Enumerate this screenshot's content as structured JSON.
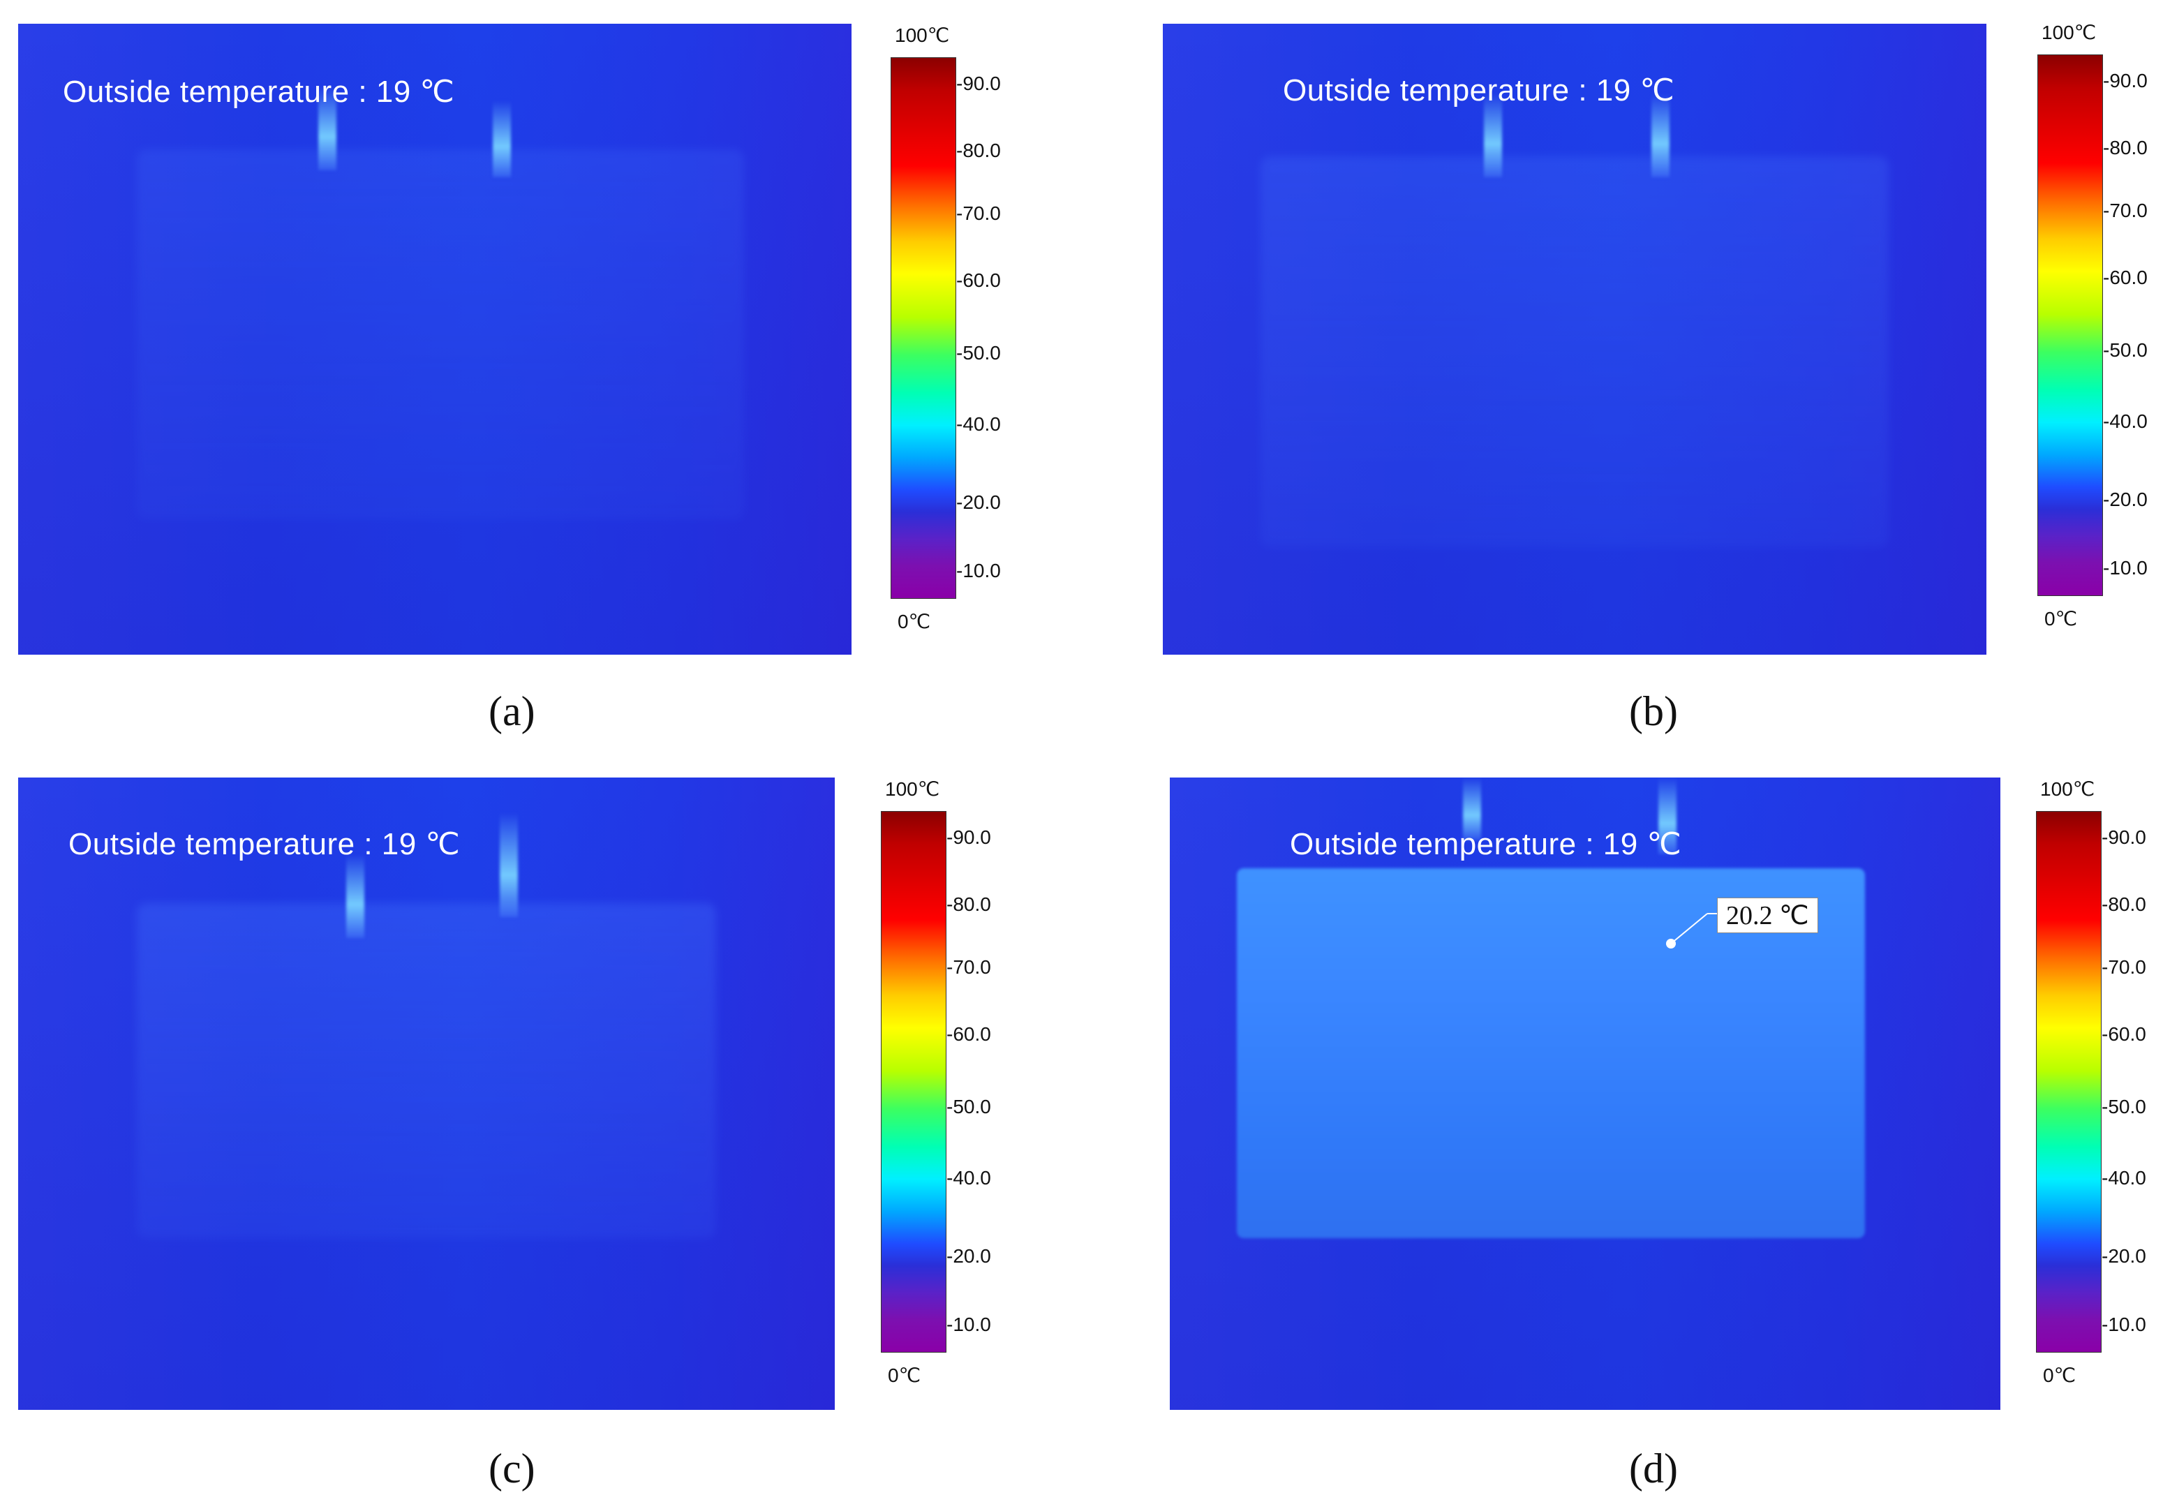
{
  "panels": [
    {
      "id": "a",
      "caption": "Outside temperature : 19 ℃",
      "label": "(a)",
      "colorbar": {
        "max_label": "100℃",
        "min_label": "0℃",
        "ticks": [
          "-90.0",
          "-80.0",
          "-70.0",
          "-60.0",
          "-50.0",
          "-40.0",
          "-20.0",
          "-10.0"
        ]
      }
    },
    {
      "id": "b",
      "caption": "Outside temperature : 19 ℃",
      "label": "(b)",
      "colorbar": {
        "max_label": "100℃",
        "min_label": "0℃",
        "ticks": [
          "-90.0",
          "-80.0",
          "-70.0",
          "-60.0",
          "-50.0",
          "-40.0",
          "-20.0",
          "-10.0"
        ]
      }
    },
    {
      "id": "c",
      "caption": "Outside temperature : 19 ℃",
      "label": "(c)",
      "colorbar": {
        "max_label": "100℃",
        "min_label": "0℃",
        "ticks": [
          "-90.0",
          "-80.0",
          "-70.0",
          "-60.0",
          "-50.0",
          "-40.0",
          "-20.0",
          "-10.0"
        ]
      }
    },
    {
      "id": "d",
      "caption": "Outside temperature : 19 ℃",
      "label": "(d)",
      "callout": "20.2 ℃",
      "colorbar": {
        "max_label": "100℃",
        "min_label": "0℃",
        "ticks": [
          "-90.0",
          "-80.0",
          "-70.0",
          "-60.0",
          "-50.0",
          "-40.0",
          "-20.0",
          "-10.0"
        ]
      }
    }
  ]
}
